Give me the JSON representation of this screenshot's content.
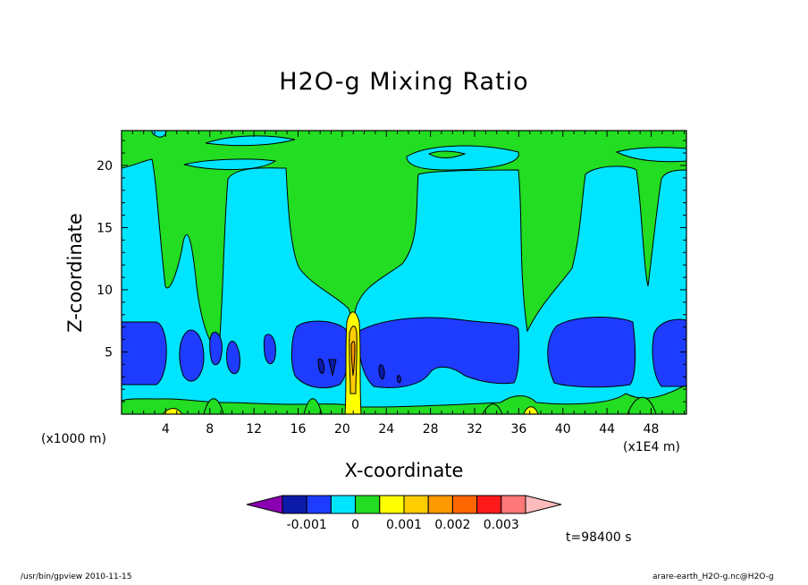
{
  "chart_data": {
    "type": "heatmap",
    "title": "H2O-g Mixing Ratio",
    "xlabel": "X-coordinate",
    "ylabel": "Z-coordinate",
    "x_unit_left": "(x1000 m)",
    "x_unit_right": "(x1E4 m)",
    "xlim": [
      0,
      51.2
    ],
    "ylim": [
      0,
      22.8
    ],
    "x_ticks": [
      4,
      8,
      12,
      16,
      20,
      24,
      28,
      32,
      36,
      40,
      44,
      48
    ],
    "x_tick_labels": [
      "4",
      "8",
      "12",
      "16",
      "20",
      "24",
      "28",
      "32",
      "36",
      "40",
      "44",
      "48"
    ],
    "y_ticks": [
      5,
      10,
      15,
      20
    ],
    "y_tick_labels": [
      "5",
      "10",
      "15",
      "20"
    ],
    "colorbar": {
      "colors": [
        "#8a00b0",
        "#0b1aa8",
        "#1e3cff",
        "#00e5ff",
        "#22dd22",
        "#ffff00",
        "#ffcc00",
        "#ff9900",
        "#ff6600",
        "#ff1a1a",
        "#ff7777",
        "#ffbbbb"
      ],
      "labels": [
        "-0.001",
        "0",
        "0.001",
        "0.002",
        "0.003"
      ]
    },
    "regions": [
      {
        "level": "0 to 0.001",
        "color": "#22dd22",
        "description": "background upper layer"
      },
      {
        "level": "-0.0005 to 0",
        "color": "#00e5ff"
      },
      {
        "level": "-0.001 to -0.0005",
        "color": "#1e3cff"
      },
      {
        "level": "-0.0015 to -0.001",
        "color": "#0b1aa8"
      },
      {
        "level": "0.001 to 0.003",
        "color": "#ffcc00",
        "description": "narrow plume near x=21"
      }
    ],
    "time_label": "t=98400 s"
  },
  "footer": {
    "left": "/usr/bin/gpview   2010-11-15",
    "right": "arare-earth_H2O-g.nc@H2O-g"
  }
}
